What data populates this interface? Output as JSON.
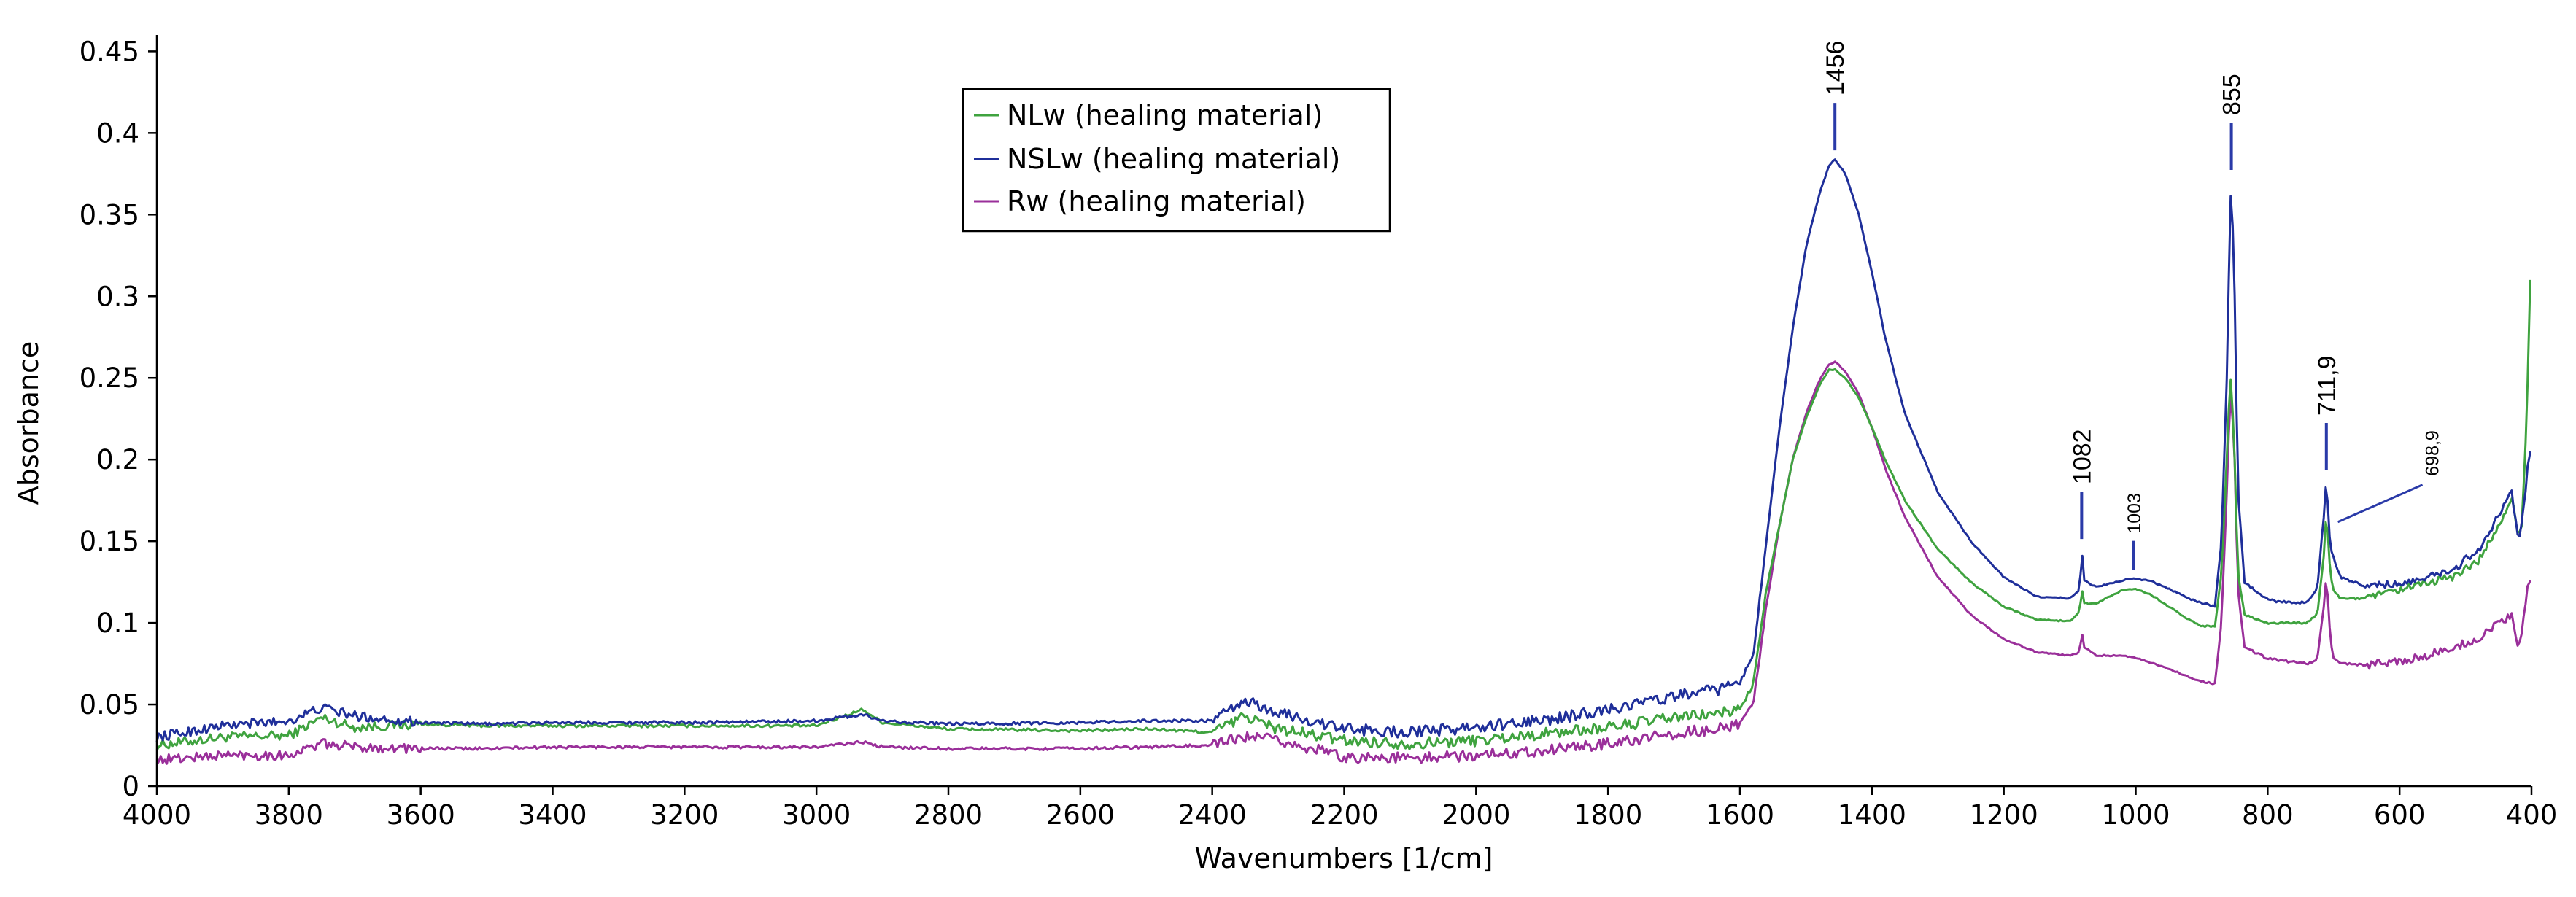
{
  "chart_data": {
    "type": "line",
    "title": "",
    "xlabel": "Wavenumbers [1/cm]",
    "ylabel": "Absorbance",
    "xlim": [
      4000,
      400
    ],
    "ylim": [
      0,
      0.46
    ],
    "x_reversed": true,
    "grid": false,
    "legend_position": "top-center",
    "x_ticks": [
      4000,
      3800,
      3600,
      3400,
      3200,
      3000,
      2800,
      2600,
      2400,
      2200,
      2000,
      1800,
      1600,
      1400,
      1200,
      1000,
      800,
      600,
      400
    ],
    "y_ticks": [
      0,
      0.05,
      0.1,
      0.15,
      0.2,
      0.25,
      0.3,
      0.35,
      0.4,
      0.45
    ],
    "y_tick_labels": [
      "0",
      "0.05",
      "0.1",
      "0.15",
      "0.2",
      "0.25",
      "0.3",
      "0.35",
      "0.4",
      "0.45"
    ],
    "series": [
      {
        "name": "NLw (healing material)",
        "color": "#3fa33f",
        "points": [
          [
            4000,
            0.025
          ],
          [
            3900,
            0.03
          ],
          [
            3800,
            0.031
          ],
          [
            3750,
            0.042
          ],
          [
            3700,
            0.036
          ],
          [
            3600,
            0.038
          ],
          [
            3500,
            0.037
          ],
          [
            3400,
            0.037
          ],
          [
            3200,
            0.037
          ],
          [
            3000,
            0.037
          ],
          [
            2930,
            0.047
          ],
          [
            2900,
            0.039
          ],
          [
            2800,
            0.035
          ],
          [
            2600,
            0.034
          ],
          [
            2500,
            0.035
          ],
          [
            2400,
            0.033
          ],
          [
            2350,
            0.043
          ],
          [
            2300,
            0.035
          ],
          [
            2200,
            0.028
          ],
          [
            2100,
            0.026
          ],
          [
            2000,
            0.028
          ],
          [
            1900,
            0.032
          ],
          [
            1800,
            0.036
          ],
          [
            1700,
            0.042
          ],
          [
            1620,
            0.045
          ],
          [
            1600,
            0.048
          ],
          [
            1580,
            0.062
          ],
          [
            1560,
            0.12
          ],
          [
            1540,
            0.16
          ],
          [
            1520,
            0.2
          ],
          [
            1500,
            0.225
          ],
          [
            1480,
            0.245
          ],
          [
            1465,
            0.255
          ],
          [
            1456,
            0.255
          ],
          [
            1440,
            0.25
          ],
          [
            1420,
            0.238
          ],
          [
            1400,
            0.22
          ],
          [
            1380,
            0.2
          ],
          [
            1350,
            0.175
          ],
          [
            1300,
            0.145
          ],
          [
            1250,
            0.125
          ],
          [
            1200,
            0.11
          ],
          [
            1150,
            0.102
          ],
          [
            1100,
            0.101
          ],
          [
            1085,
            0.107
          ],
          [
            1082,
            0.122
          ],
          [
            1078,
            0.112
          ],
          [
            1060,
            0.112
          ],
          [
            1040,
            0.116
          ],
          [
            1020,
            0.12
          ],
          [
            1003,
            0.121
          ],
          [
            980,
            0.118
          ],
          [
            950,
            0.11
          ],
          [
            920,
            0.102
          ],
          [
            900,
            0.098
          ],
          [
            880,
            0.098
          ],
          [
            870,
            0.13
          ],
          [
            862,
            0.2
          ],
          [
            857,
            0.25
          ],
          [
            855,
            0.248
          ],
          [
            850,
            0.2
          ],
          [
            845,
            0.13
          ],
          [
            835,
            0.105
          ],
          [
            800,
            0.1
          ],
          [
            760,
            0.1
          ],
          [
            740,
            0.1
          ],
          [
            725,
            0.105
          ],
          [
            715,
            0.14
          ],
          [
            711,
            0.168
          ],
          [
            705,
            0.13
          ],
          [
            700,
            0.12
          ],
          [
            690,
            0.115
          ],
          [
            650,
            0.115
          ],
          [
            600,
            0.12
          ],
          [
            560,
            0.124
          ],
          [
            520,
            0.128
          ],
          [
            480,
            0.138
          ],
          [
            450,
            0.16
          ],
          [
            430,
            0.175
          ],
          [
            420,
            0.155
          ],
          [
            415,
            0.16
          ],
          [
            410,
            0.2
          ],
          [
            405,
            0.26
          ],
          [
            402,
            0.31
          ]
        ]
      },
      {
        "name": "NSLw (healing material)",
        "color": "#1f2f9a",
        "points": [
          [
            4000,
            0.03
          ],
          [
            3900,
            0.037
          ],
          [
            3800,
            0.04
          ],
          [
            3750,
            0.048
          ],
          [
            3700,
            0.043
          ],
          [
            3600,
            0.039
          ],
          [
            3500,
            0.038
          ],
          [
            3400,
            0.039
          ],
          [
            3200,
            0.039
          ],
          [
            3000,
            0.04
          ],
          [
            2930,
            0.044
          ],
          [
            2900,
            0.04
          ],
          [
            2800,
            0.038
          ],
          [
            2600,
            0.039
          ],
          [
            2500,
            0.04
          ],
          [
            2400,
            0.04
          ],
          [
            2350,
            0.052
          ],
          [
            2300,
            0.045
          ],
          [
            2200,
            0.035
          ],
          [
            2100,
            0.033
          ],
          [
            2000,
            0.036
          ],
          [
            1900,
            0.04
          ],
          [
            1800,
            0.047
          ],
          [
            1700,
            0.055
          ],
          [
            1620,
            0.06
          ],
          [
            1600,
            0.064
          ],
          [
            1580,
            0.08
          ],
          [
            1560,
            0.15
          ],
          [
            1540,
            0.22
          ],
          [
            1520,
            0.28
          ],
          [
            1500,
            0.33
          ],
          [
            1480,
            0.362
          ],
          [
            1465,
            0.38
          ],
          [
            1456,
            0.384
          ],
          [
            1440,
            0.375
          ],
          [
            1420,
            0.35
          ],
          [
            1400,
            0.315
          ],
          [
            1380,
            0.275
          ],
          [
            1350,
            0.228
          ],
          [
            1300,
            0.18
          ],
          [
            1250,
            0.15
          ],
          [
            1200,
            0.128
          ],
          [
            1150,
            0.116
          ],
          [
            1100,
            0.115
          ],
          [
            1085,
            0.12
          ],
          [
            1082,
            0.146
          ],
          [
            1078,
            0.126
          ],
          [
            1060,
            0.122
          ],
          [
            1040,
            0.124
          ],
          [
            1020,
            0.126
          ],
          [
            1003,
            0.127
          ],
          [
            980,
            0.126
          ],
          [
            950,
            0.121
          ],
          [
            920,
            0.115
          ],
          [
            900,
            0.112
          ],
          [
            880,
            0.11
          ],
          [
            870,
            0.15
          ],
          [
            862,
            0.25
          ],
          [
            857,
            0.35
          ],
          [
            855,
            0.372
          ],
          [
            850,
            0.3
          ],
          [
            845,
            0.18
          ],
          [
            835,
            0.125
          ],
          [
            800,
            0.114
          ],
          [
            760,
            0.112
          ],
          [
            740,
            0.113
          ],
          [
            725,
            0.12
          ],
          [
            715,
            0.165
          ],
          [
            711,
            0.188
          ],
          [
            705,
            0.145
          ],
          [
            700,
            0.14
          ],
          [
            690,
            0.128
          ],
          [
            650,
            0.122
          ],
          [
            600,
            0.124
          ],
          [
            560,
            0.127
          ],
          [
            520,
            0.132
          ],
          [
            480,
            0.145
          ],
          [
            450,
            0.165
          ],
          [
            430,
            0.18
          ],
          [
            420,
            0.15
          ],
          [
            415,
            0.16
          ],
          [
            410,
            0.175
          ],
          [
            405,
            0.2
          ],
          [
            402,
            0.205
          ]
        ]
      },
      {
        "name": "Rw (healing material)",
        "color": "#9a2f9a",
        "points": [
          [
            4000,
            0.016
          ],
          [
            3900,
            0.019
          ],
          [
            3800,
            0.019
          ],
          [
            3750,
            0.026
          ],
          [
            3700,
            0.024
          ],
          [
            3600,
            0.023
          ],
          [
            3500,
            0.023
          ],
          [
            3400,
            0.024
          ],
          [
            3200,
            0.024
          ],
          [
            3000,
            0.024
          ],
          [
            2930,
            0.027
          ],
          [
            2900,
            0.024
          ],
          [
            2800,
            0.023
          ],
          [
            2600,
            0.023
          ],
          [
            2500,
            0.024
          ],
          [
            2400,
            0.025
          ],
          [
            2350,
            0.03
          ],
          [
            2300,
            0.028
          ],
          [
            2200,
            0.018
          ],
          [
            2100,
            0.017
          ],
          [
            2000,
            0.019
          ],
          [
            1900,
            0.022
          ],
          [
            1800,
            0.026
          ],
          [
            1700,
            0.032
          ],
          [
            1620,
            0.036
          ],
          [
            1600,
            0.038
          ],
          [
            1580,
            0.05
          ],
          [
            1560,
            0.11
          ],
          [
            1540,
            0.16
          ],
          [
            1520,
            0.2
          ],
          [
            1500,
            0.228
          ],
          [
            1480,
            0.248
          ],
          [
            1465,
            0.258
          ],
          [
            1456,
            0.26
          ],
          [
            1440,
            0.254
          ],
          [
            1420,
            0.24
          ],
          [
            1400,
            0.22
          ],
          [
            1380,
            0.195
          ],
          [
            1350,
            0.165
          ],
          [
            1300,
            0.128
          ],
          [
            1250,
            0.105
          ],
          [
            1200,
            0.09
          ],
          [
            1150,
            0.082
          ],
          [
            1100,
            0.08
          ],
          [
            1085,
            0.082
          ],
          [
            1082,
            0.095
          ],
          [
            1078,
            0.085
          ],
          [
            1060,
            0.08
          ],
          [
            1040,
            0.08
          ],
          [
            1020,
            0.08
          ],
          [
            1003,
            0.079
          ],
          [
            980,
            0.076
          ],
          [
            950,
            0.072
          ],
          [
            920,
            0.067
          ],
          [
            900,
            0.064
          ],
          [
            880,
            0.063
          ],
          [
            870,
            0.1
          ],
          [
            862,
            0.18
          ],
          [
            857,
            0.238
          ],
          [
            855,
            0.24
          ],
          [
            850,
            0.2
          ],
          [
            845,
            0.12
          ],
          [
            835,
            0.085
          ],
          [
            800,
            0.078
          ],
          [
            760,
            0.076
          ],
          [
            740,
            0.075
          ],
          [
            725,
            0.078
          ],
          [
            715,
            0.11
          ],
          [
            711,
            0.13
          ],
          [
            705,
            0.09
          ],
          [
            700,
            0.078
          ],
          [
            690,
            0.075
          ],
          [
            650,
            0.074
          ],
          [
            600,
            0.076
          ],
          [
            560,
            0.08
          ],
          [
            520,
            0.085
          ],
          [
            480,
            0.09
          ],
          [
            450,
            0.1
          ],
          [
            430,
            0.105
          ],
          [
            420,
            0.085
          ],
          [
            415,
            0.095
          ],
          [
            410,
            0.11
          ],
          [
            405,
            0.128
          ],
          [
            402,
            0.126
          ]
        ]
      }
    ],
    "annotations": [
      {
        "label": "1456",
        "x": 1456,
        "y": 0.384,
        "size": "large"
      },
      {
        "label": "855",
        "x": 855,
        "y": 0.372,
        "size": "large"
      },
      {
        "label": "711,9",
        "x": 711,
        "y": 0.188,
        "size": "large"
      },
      {
        "label": "1082",
        "x": 1082,
        "y": 0.146,
        "size": "large"
      },
      {
        "label": "1003",
        "x": 1003,
        "y": 0.127,
        "size": "small"
      },
      {
        "label": "698,9",
        "x": 698,
        "y": 0.16,
        "size": "small",
        "leader": "diagonal"
      }
    ]
  }
}
